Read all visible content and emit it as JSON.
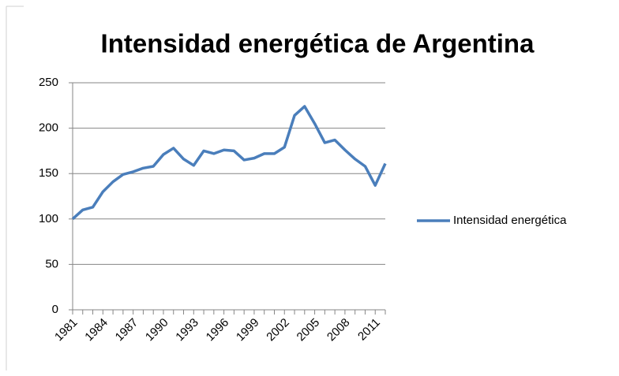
{
  "chart_data": {
    "type": "line",
    "title": "Intensidad energética de Argentina",
    "categories": [
      "1981",
      null,
      null,
      "1984",
      null,
      null,
      "1987",
      null,
      null,
      "1990",
      null,
      null,
      "1993",
      null,
      null,
      "1996",
      null,
      null,
      "1999",
      null,
      null,
      "2002",
      null,
      null,
      "2005",
      null,
      null,
      "2008",
      null,
      null,
      "2011",
      null
    ],
    "series": [
      {
        "name": "Intensidad energética",
        "color": "#4a7ebb",
        "values": [
          100,
          110,
          113,
          130,
          141,
          149,
          152,
          156,
          158,
          171,
          178,
          166,
          159,
          175,
          172,
          176,
          175,
          165,
          167,
          172,
          172,
          179,
          214,
          224,
          205,
          184,
          187,
          176,
          166,
          158,
          137,
          161
        ]
      }
    ],
    "ylim": [
      0,
      250
    ],
    "yticks": [
      0,
      50,
      100,
      150,
      200,
      250
    ],
    "grid": true,
    "legend": "right"
  }
}
